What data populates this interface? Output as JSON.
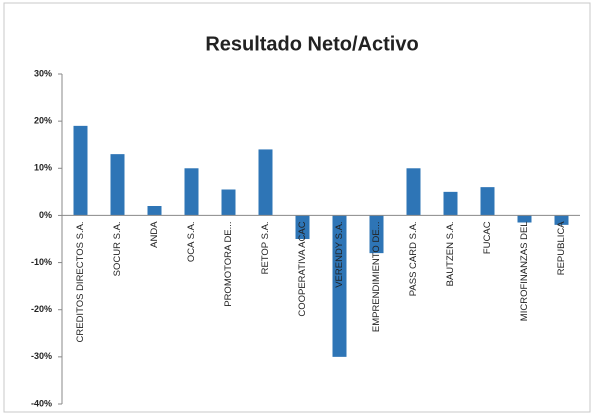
{
  "chart_data": {
    "type": "bar",
    "title": "Resultado Neto/Activo",
    "categories": [
      "CREDITOS DIRECTOS S.A.",
      "SOCUR S.A.",
      "ANDA",
      "OCA S.A.",
      "PROMOTORA DE...",
      "RETOP S.A.",
      "COOPERATIVA ACAC",
      "VERENDY S.A.",
      "EMPRENDIMIENTO DE...",
      "PASS CARD S.A.",
      "BAUTZEN S.A.",
      "FUCAC",
      "MICROFINANZAS DEL",
      "REPUBLICA"
    ],
    "values": [
      19,
      13,
      2,
      10,
      5.5,
      14,
      -5,
      -30,
      -8,
      10,
      5,
      6,
      -1.5,
      -2
    ],
    "color": "#2e75b6",
    "ylim": [
      -40,
      30
    ],
    "yticks": [
      {
        "value": -40,
        "label": "-40%"
      },
      {
        "value": -30,
        "label": "-30%"
      },
      {
        "value": -20,
        "label": "-20%"
      },
      {
        "value": -10,
        "label": "-10%"
      },
      {
        "value": 0,
        "label": "0%"
      },
      {
        "value": 10,
        "label": "10%"
      },
      {
        "value": 20,
        "label": "20%"
      },
      {
        "value": 30,
        "label": "30%"
      }
    ],
    "grid": false
  }
}
